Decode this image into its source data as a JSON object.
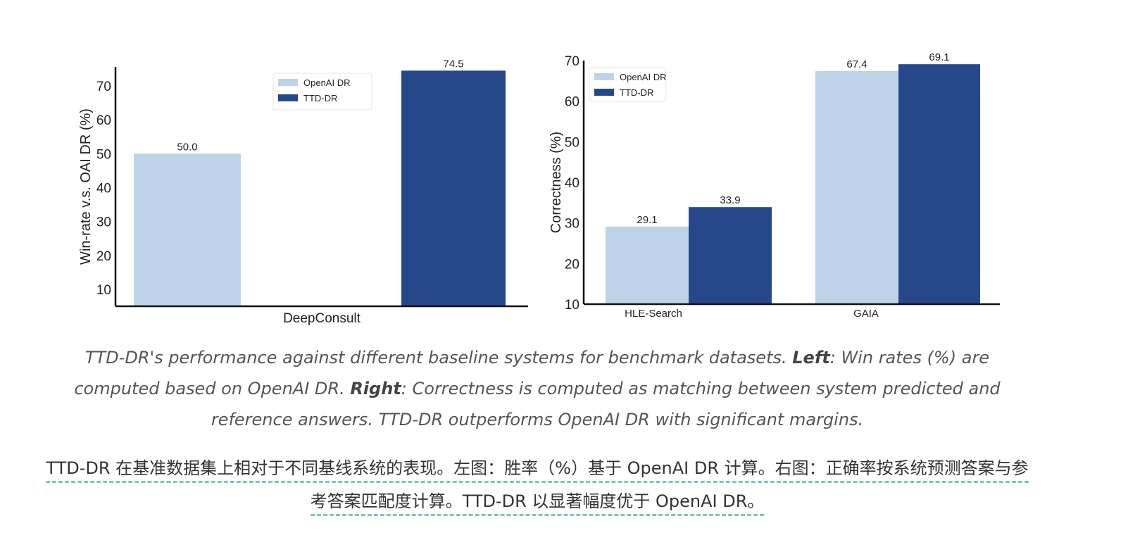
{
  "chart_data": [
    {
      "type": "bar",
      "title": "",
      "categories": [
        "DeepConsult"
      ],
      "series": [
        {
          "name": "OpenAI DR",
          "values": [
            50.0
          ],
          "color": "#bdd3e9"
        },
        {
          "name": "TTD-DR",
          "values": [
            74.5
          ],
          "color": "#26488a"
        }
      ],
      "data_labels": [
        [
          "50.0"
        ],
        [
          "74.5"
        ]
      ],
      "xlabel": "DeepConsult",
      "ylabel": "Win-rate v.s. OAI DR (%)",
      "ylim": [
        5,
        75.6
      ],
      "yticks": [
        10,
        20,
        30,
        40,
        50,
        60,
        70
      ],
      "legend": "top-center",
      "grid": false
    },
    {
      "type": "bar",
      "title": "",
      "categories": [
        "HLE-Search",
        "GAIA"
      ],
      "series": [
        {
          "name": "OpenAI DR",
          "values": [
            29.1,
            67.4
          ],
          "color": "#bdd3e9"
        },
        {
          "name": "TTD-DR",
          "values": [
            33.9,
            69.1
          ],
          "color": "#26488a"
        }
      ],
      "data_labels": [
        [
          "29.1",
          "67.4"
        ],
        [
          "33.9",
          "69.1"
        ]
      ],
      "xlabel": "",
      "ylabel": "Correctness (%)",
      "ylim": [
        10,
        70
      ],
      "yticks": [
        10,
        20,
        30,
        40,
        50,
        60,
        70
      ],
      "legend": "top-left",
      "grid": false
    }
  ],
  "caption": {
    "intro": "TTD-DR's performance against different baseline systems for benchmark datasets. ",
    "left_label": "Left",
    "left_text": ": Win rates (%) are computed based on OpenAI DR. ",
    "right_label": "Right",
    "right_text": ": Correctness is computed as matching between system predicted and reference answers. TTD-DR outperforms OpenAI DR with significant margins."
  },
  "translation": "TTD-DR 在基准数据集上相对于不同基线系统的表现。左图：胜率（%）基于 OpenAI DR 计算。右图：正确率按系统预测答案与参考答案匹配度计算。TTD-DR 以显著幅度优于 OpenAI DR。"
}
